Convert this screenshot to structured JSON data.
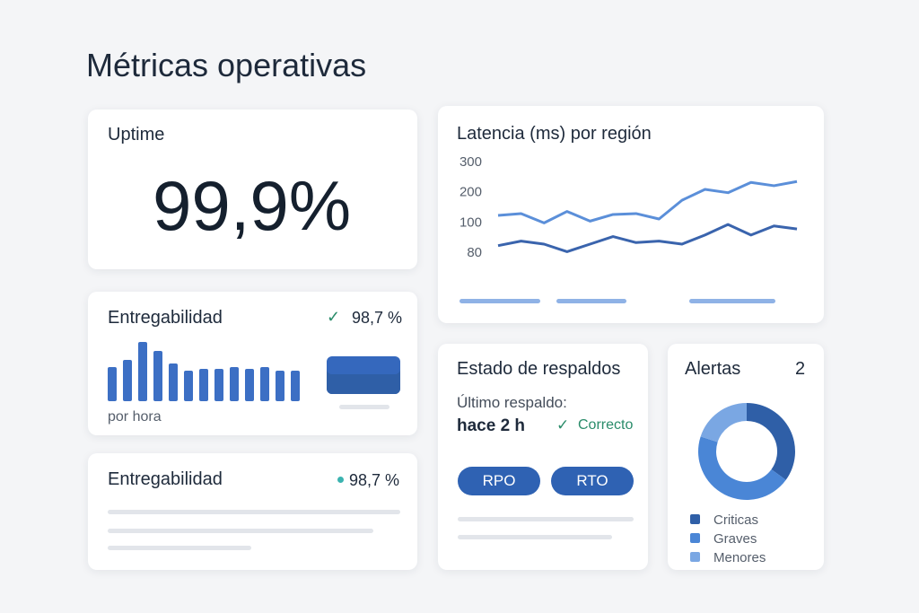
{
  "header": {
    "title": "Métricas operativas"
  },
  "uptime": {
    "title": "Uptime",
    "value": "99,9%"
  },
  "deliverability": {
    "title": "Entregabilidad",
    "status": "98,7 %",
    "caption": "por hora",
    "chart_data": {
      "type": "bar",
      "values": [
        38,
        46,
        66,
        56,
        42,
        34,
        36,
        36,
        38,
        36,
        38,
        34,
        34
      ],
      "color": "#3c6fc4"
    }
  },
  "deliverability_summary": {
    "title": "Entregabilidad",
    "status": "98,7 %"
  },
  "latency": {
    "chart_data": {
      "type": "line",
      "title": "Latencia (ms) por región",
      "categories": [
        null,
        null,
        null,
        null,
        null,
        null,
        null,
        null,
        null,
        null,
        null,
        null,
        null,
        null
      ],
      "yticks": [
        300,
        200,
        100,
        80
      ],
      "series": [
        {
          "color": "#5b8fd9",
          "values": [
            125,
            131,
            100,
            138,
            106,
            128,
            131,
            113,
            175,
            211,
            200,
            234,
            223,
            237
          ]
        },
        {
          "color": "#3a64ad",
          "values": [
            85,
            88,
            86,
            81,
            86,
            91,
            87,
            88,
            86,
            92,
            99,
            92,
            98,
            96
          ]
        }
      ]
    }
  },
  "backups": {
    "title": "Estado de respaldos",
    "last_label": "Último respaldo:",
    "last_value": "hace 2 h",
    "status": "Correcto",
    "buttons": [
      "RPO",
      "RTO"
    ]
  },
  "alerts": {
    "title": "Alertas",
    "count": "2",
    "chart_data": {
      "type": "donut",
      "categories": [
        "Criticas",
        "Graves",
        "Menores"
      ],
      "values": [
        35,
        45,
        20
      ],
      "colors": [
        "#2f5fa7",
        "#4a86d6",
        "#7aa7e3"
      ]
    }
  }
}
